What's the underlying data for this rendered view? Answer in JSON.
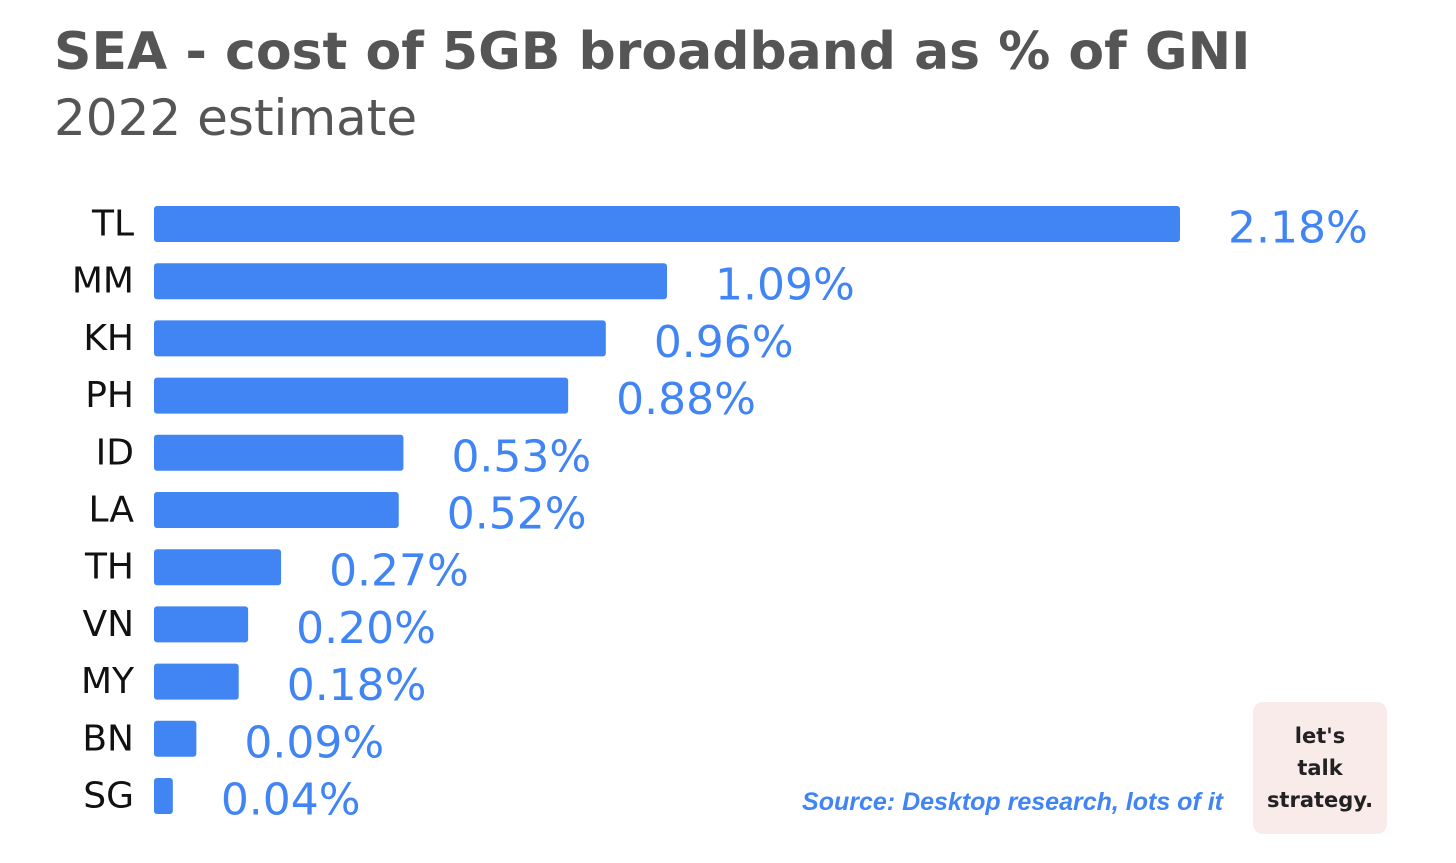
{
  "chart_data": {
    "type": "bar",
    "orientation": "horizontal",
    "title": "SEA - cost of 5GB broadband as % of GNI",
    "subtitle": "2022 estimate",
    "categories": [
      "TL",
      "MM",
      "KH",
      "PH",
      "ID",
      "LA",
      "TH",
      "VN",
      "MY",
      "BN",
      "SG"
    ],
    "values": [
      2.18,
      1.09,
      0.96,
      0.88,
      0.53,
      0.52,
      0.27,
      0.2,
      0.18,
      0.09,
      0.04
    ],
    "value_labels": [
      "2.18%",
      "1.09%",
      "0.96%",
      "0.88%",
      "0.53%",
      "0.52%",
      "0.27%",
      "0.20%",
      "0.18%",
      "0.09%",
      "0.04%"
    ],
    "xlabel": "",
    "ylabel": "",
    "xlim": [
      0,
      2.18
    ],
    "grid": false,
    "legend": "none",
    "bar_color": "#4185f4"
  },
  "footer": {
    "source": "Source: Desktop research, lots of it"
  },
  "logo": {
    "line1": "let's",
    "line2": "talk",
    "line3": "strategy."
  }
}
